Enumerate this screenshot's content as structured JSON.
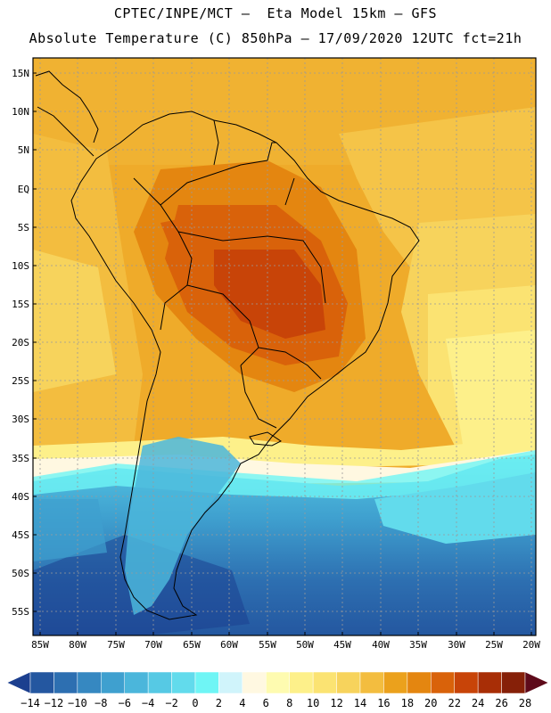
{
  "header": {
    "line1": "CPTEC/INPE/MCT –  Eta Model 15km – GFS",
    "line2": "Absolute Temperature (C) 850hPa – 17/09/2020 12UTC fct=21h"
  },
  "map": {
    "lat_labels": [
      "15N",
      "10N",
      "5N",
      "EQ",
      "5S",
      "10S",
      "15S",
      "20S",
      "25S",
      "30S",
      "35S",
      "40S",
      "45S",
      "50S",
      "55S"
    ],
    "lon_labels": [
      "85W",
      "80W",
      "75W",
      "70W",
      "65W",
      "60W",
      "55W",
      "50W",
      "45W",
      "40W",
      "35W",
      "30W",
      "25W",
      "20W"
    ]
  },
  "colorbar": {
    "labels": [
      "-14",
      "-12",
      "-10",
      "-8",
      "-6",
      "-4",
      "-2",
      "0",
      "2",
      "4",
      "6",
      "8",
      "10",
      "12",
      "14",
      "16",
      "18",
      "20",
      "22",
      "24",
      "26",
      "28"
    ],
    "colors": [
      "#1c3f8f",
      "#2457a0",
      "#2d6fb1",
      "#3688c1",
      "#3fa0cf",
      "#4bb6db",
      "#56c9e4",
      "#62dbec",
      "#6ff5f5",
      "#d0f4fb",
      "#fff8e1",
      "#fefbb0",
      "#fdf08a",
      "#fbe372",
      "#f7d35c",
      "#f3bd3f",
      "#eba11c",
      "#e48610",
      "#d9620a",
      "#c84408",
      "#a82e06",
      "#862008",
      "#5e0a1a"
    ]
  }
}
